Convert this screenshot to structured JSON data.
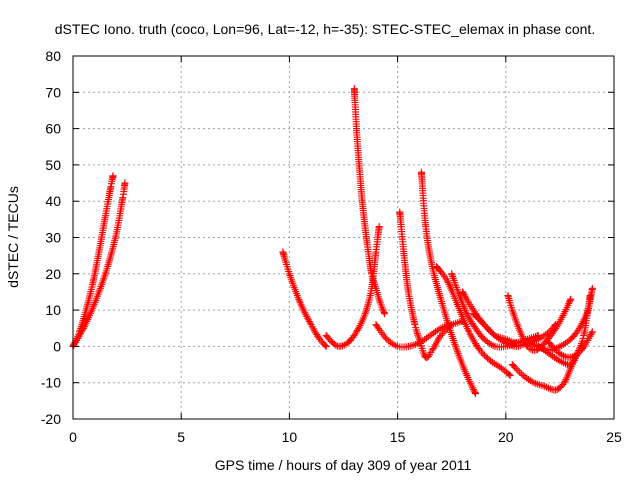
{
  "chart_data": {
    "type": "scatter",
    "title": "dSTEC Iono. truth (coco, Lon=96, Lat=-12, h=-35): STEC-STEC_elemax in phase cont.",
    "xlabel": "GPS time / hours of day 309 of year 2011",
    "ylabel": "dSTEC  / TECUs",
    "xlim": [
      0,
      25
    ],
    "ylim": [
      -20,
      80
    ],
    "xticks": [
      0,
      5,
      10,
      15,
      20,
      25
    ],
    "yticks": [
      -20,
      -10,
      0,
      10,
      20,
      30,
      40,
      50,
      60,
      70,
      80
    ],
    "grid": true,
    "marker": "plus",
    "color": "#ff0000",
    "series": [
      {
        "x": [
          0.0,
          0.3,
          0.6,
          0.9,
          1.2,
          1.5,
          1.75,
          1.85
        ],
        "y": [
          0,
          4,
          10,
          17,
          26,
          36,
          44,
          47
        ]
      },
      {
        "x": [
          0.0,
          0.4,
          0.8,
          1.2,
          1.6,
          2.0,
          2.3,
          2.4
        ],
        "y": [
          0,
          4,
          9,
          15,
          22,
          31,
          41,
          45
        ]
      },
      {
        "x": [
          9.7,
          10.0,
          10.5,
          11.0,
          11.4,
          11.7
        ],
        "y": [
          26,
          20,
          12,
          6,
          2,
          0
        ]
      },
      {
        "x": [
          11.7,
          12.0,
          12.3,
          12.7,
          13.1,
          13.5,
          13.8,
          14.0,
          14.15
        ],
        "y": [
          3,
          1,
          0,
          1,
          4,
          9,
          16,
          26,
          33
        ]
      },
      {
        "x": [
          13.0,
          13.1,
          13.25,
          13.4,
          13.6,
          13.8,
          14.0,
          14.2,
          14.4
        ],
        "y": [
          71,
          60,
          48,
          38,
          28,
          20,
          16,
          12,
          9
        ]
      },
      {
        "x": [
          14.0,
          14.5,
          15.0,
          15.5,
          16.0,
          16.5,
          17.0,
          17.5,
          18.0
        ],
        "y": [
          6,
          2,
          0,
          0,
          1,
          3,
          5,
          6,
          7
        ]
      },
      {
        "x": [
          15.1,
          15.3,
          15.5,
          15.8,
          16.0,
          16.3,
          16.6,
          17.0,
          17.5
        ],
        "y": [
          37,
          25,
          15,
          6,
          2,
          -3,
          -1,
          3,
          6
        ]
      },
      {
        "x": [
          16.1,
          16.3,
          16.6,
          17.0,
          17.4,
          17.8,
          18.2,
          18.6
        ],
        "y": [
          48,
          33,
          22,
          13,
          5,
          -2,
          -8,
          -13
        ]
      },
      {
        "x": [
          16.8,
          17.3,
          17.8,
          18.3,
          18.8,
          19.3,
          19.8,
          20.2
        ],
        "y": [
          22,
          18,
          11,
          4,
          -1,
          -4,
          -6,
          -8
        ]
      },
      {
        "x": [
          17.5,
          17.8,
          18.2,
          18.6,
          19.0,
          19.5,
          20.0,
          20.5
        ],
        "y": [
          20,
          15,
          9,
          5,
          2,
          0,
          0,
          1
        ]
      },
      {
        "x": [
          18.0,
          18.5,
          19.0,
          19.5,
          20.0,
          20.5,
          21.0,
          21.5
        ],
        "y": [
          15,
          10,
          6,
          3,
          2,
          1,
          2,
          3
        ]
      },
      {
        "x": [
          18.5,
          19.0,
          19.5,
          20.0,
          20.5,
          21.0,
          21.5,
          22.0,
          22.3
        ],
        "y": [
          9,
          6,
          3,
          1,
          0,
          1,
          2,
          4,
          6
        ]
      },
      {
        "x": [
          20.1,
          20.3,
          20.6,
          21.0,
          21.4,
          21.8,
          22.2,
          22.6,
          23.0
        ],
        "y": [
          14,
          10,
          5,
          0,
          -1,
          1,
          4,
          8,
          13
        ]
      },
      {
        "x": [
          20.3,
          20.8,
          21.3,
          21.8,
          22.3,
          22.7,
          23.0,
          23.3
        ],
        "y": [
          -5,
          -8,
          -10,
          -11,
          -12,
          -10,
          -6,
          -2
        ]
      },
      {
        "x": [
          21.0,
          21.5,
          22.0,
          22.5,
          23.0,
          23.3,
          23.6,
          23.9
        ],
        "y": [
          1,
          0,
          -2,
          -4,
          -5,
          -2,
          3,
          14
        ]
      },
      {
        "x": [
          21.5,
          22.0,
          22.5,
          23.0,
          23.4,
          23.8,
          24.0
        ],
        "y": [
          0,
          -1,
          0,
          2,
          5,
          10,
          16
        ]
      },
      {
        "x": [
          22.0,
          22.5,
          23.0,
          23.5,
          24.0
        ],
        "y": [
          1,
          -2,
          -3,
          -1,
          4
        ]
      }
    ]
  }
}
